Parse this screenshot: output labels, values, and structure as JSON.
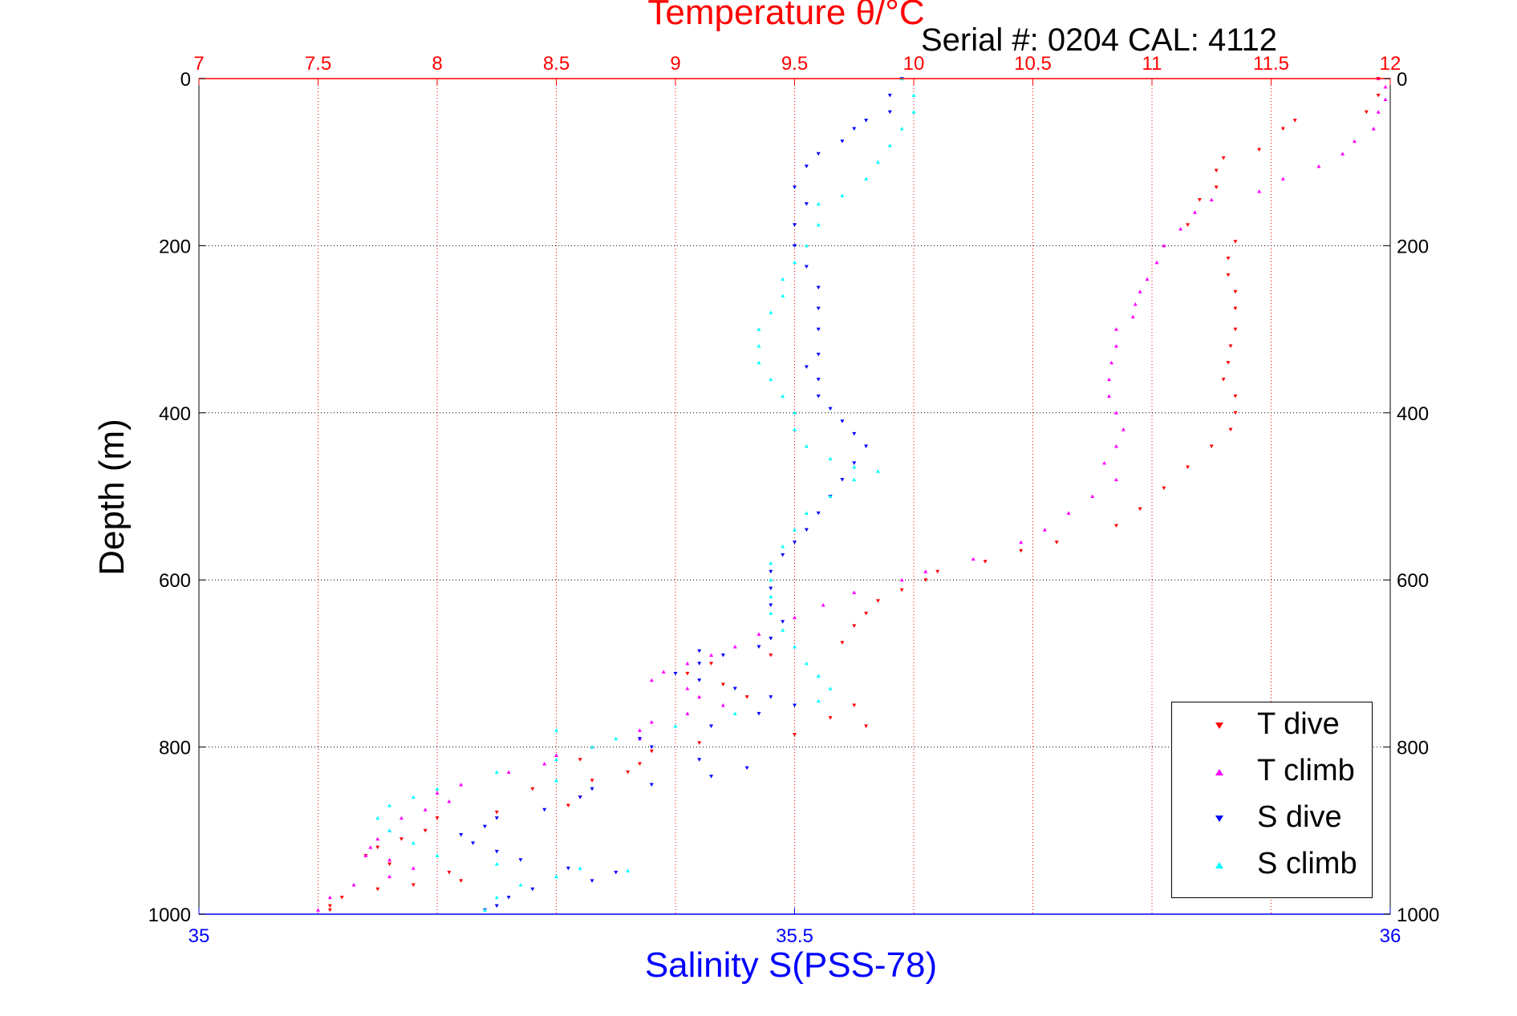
{
  "chart_data": {
    "type": "scatter",
    "title": "Temperature θ/°C",
    "subtitle": "Serial #: 0204  CAL: 4112",
    "ylabel": "Depth (m)",
    "xlabel": "Salinity S(PSS-78)",
    "grid": true,
    "legend_position": "bottom-right",
    "y_axis": {
      "min": 0,
      "max": 1000,
      "reversed": true,
      "ticks": [
        0,
        200,
        400,
        600,
        800,
        1000
      ]
    },
    "x_axis_top": {
      "label": "Temperature θ/°C",
      "min": 7,
      "max": 12,
      "ticks": [
        "7",
        "7.5",
        "8",
        "8.5",
        "9",
        "9.5",
        "10",
        "10.5",
        "11",
        "11.5",
        "12"
      ],
      "color": "#ff0000"
    },
    "x_axis_bottom": {
      "label": "Salinity S(PSS-78)",
      "min": 35,
      "max": 36,
      "ticks": [
        "35",
        "35.5",
        "36"
      ],
      "color": "#0000ff"
    },
    "series": [
      {
        "name": "T dive",
        "axis": "temperature",
        "color": "#ff0000",
        "marker": "down-triangle",
        "points": [
          [
            11.95,
            0
          ],
          [
            11.95,
            20
          ],
          [
            11.9,
            40
          ],
          [
            11.6,
            50
          ],
          [
            11.55,
            60
          ],
          [
            11.45,
            85
          ],
          [
            11.3,
            95
          ],
          [
            11.27,
            110
          ],
          [
            11.27,
            130
          ],
          [
            11.2,
            145
          ],
          [
            11.15,
            175
          ],
          [
            11.35,
            195
          ],
          [
            11.32,
            215
          ],
          [
            11.32,
            235
          ],
          [
            11.35,
            255
          ],
          [
            11.35,
            275
          ],
          [
            11.35,
            300
          ],
          [
            11.33,
            320
          ],
          [
            11.32,
            340
          ],
          [
            11.3,
            360
          ],
          [
            11.35,
            380
          ],
          [
            11.35,
            400
          ],
          [
            11.33,
            420
          ],
          [
            11.25,
            440
          ],
          [
            11.15,
            465
          ],
          [
            11.05,
            490
          ],
          [
            10.95,
            515
          ],
          [
            10.85,
            535
          ],
          [
            10.6,
            555
          ],
          [
            10.45,
            565
          ],
          [
            10.3,
            578
          ],
          [
            10.1,
            590
          ],
          [
            10.05,
            600
          ],
          [
            9.95,
            612
          ],
          [
            9.85,
            625
          ],
          [
            9.8,
            640
          ],
          [
            9.75,
            655
          ],
          [
            9.7,
            675
          ],
          [
            9.4,
            690
          ],
          [
            9.15,
            700
          ],
          [
            9.05,
            712
          ],
          [
            9.2,
            725
          ],
          [
            9.3,
            740
          ],
          [
            9.75,
            750
          ],
          [
            9.65,
            765
          ],
          [
            9.8,
            775
          ],
          [
            9.5,
            785
          ],
          [
            9.1,
            795
          ],
          [
            8.9,
            805
          ],
          [
            8.6,
            815
          ],
          [
            8.85,
            820
          ],
          [
            8.8,
            830
          ],
          [
            8.65,
            840
          ],
          [
            8.4,
            850
          ],
          [
            8.6,
            860
          ],
          [
            8.55,
            870
          ],
          [
            8.25,
            878
          ],
          [
            8.0,
            885
          ],
          [
            7.95,
            900
          ],
          [
            7.85,
            910
          ],
          [
            7.75,
            920
          ],
          [
            7.7,
            930
          ],
          [
            7.8,
            940
          ],
          [
            8.05,
            950
          ],
          [
            8.1,
            960
          ],
          [
            7.9,
            965
          ],
          [
            7.75,
            970
          ],
          [
            7.6,
            980
          ],
          [
            7.55,
            990
          ],
          [
            7.55,
            995
          ]
        ]
      },
      {
        "name": "T climb",
        "axis": "temperature",
        "color": "#ff00ff",
        "marker": "up-triangle",
        "points": [
          [
            11.95,
            0
          ],
          [
            11.98,
            10
          ],
          [
            11.98,
            25
          ],
          [
            11.95,
            40
          ],
          [
            11.93,
            60
          ],
          [
            11.85,
            75
          ],
          [
            11.8,
            90
          ],
          [
            11.7,
            105
          ],
          [
            11.55,
            120
          ],
          [
            11.45,
            135
          ],
          [
            11.25,
            145
          ],
          [
            11.18,
            160
          ],
          [
            11.12,
            180
          ],
          [
            11.05,
            200
          ],
          [
            11.02,
            220
          ],
          [
            10.98,
            240
          ],
          [
            10.95,
            255
          ],
          [
            10.93,
            270
          ],
          [
            10.92,
            285
          ],
          [
            10.85,
            300
          ],
          [
            10.85,
            320
          ],
          [
            10.83,
            340
          ],
          [
            10.82,
            360
          ],
          [
            10.82,
            380
          ],
          [
            10.85,
            400
          ],
          [
            10.88,
            420
          ],
          [
            10.85,
            440
          ],
          [
            10.8,
            460
          ],
          [
            10.85,
            480
          ],
          [
            10.75,
            500
          ],
          [
            10.65,
            520
          ],
          [
            10.55,
            540
          ],
          [
            10.45,
            555
          ],
          [
            10.25,
            575
          ],
          [
            10.05,
            590
          ],
          [
            9.95,
            600
          ],
          [
            9.75,
            615
          ],
          [
            9.62,
            630
          ],
          [
            9.5,
            645
          ],
          [
            9.35,
            665
          ],
          [
            9.25,
            680
          ],
          [
            9.15,
            690
          ],
          [
            9.05,
            700
          ],
          [
            8.95,
            710
          ],
          [
            8.9,
            720
          ],
          [
            9.05,
            730
          ],
          [
            9.1,
            740
          ],
          [
            9.2,
            750
          ],
          [
            9.05,
            760
          ],
          [
            8.9,
            770
          ],
          [
            8.85,
            780
          ],
          [
            8.85,
            790
          ],
          [
            8.65,
            800
          ],
          [
            8.5,
            810
          ],
          [
            8.45,
            820
          ],
          [
            8.3,
            830
          ],
          [
            8.1,
            845
          ],
          [
            8.0,
            855
          ],
          [
            8.05,
            865
          ],
          [
            7.95,
            875
          ],
          [
            7.85,
            885
          ],
          [
            7.8,
            900
          ],
          [
            7.75,
            910
          ],
          [
            7.72,
            920
          ],
          [
            7.7,
            930
          ],
          [
            7.8,
            935
          ],
          [
            7.9,
            945
          ],
          [
            7.8,
            955
          ],
          [
            7.65,
            965
          ],
          [
            7.55,
            980
          ],
          [
            7.5,
            995
          ]
        ]
      },
      {
        "name": "S dive",
        "axis": "salinity",
        "color": "#0000ff",
        "marker": "down-triangle",
        "points": [
          [
            35.59,
            0
          ],
          [
            35.58,
            20
          ],
          [
            35.58,
            40
          ],
          [
            35.56,
            50
          ],
          [
            35.55,
            60
          ],
          [
            35.54,
            75
          ],
          [
            35.52,
            90
          ],
          [
            35.51,
            105
          ],
          [
            35.5,
            130
          ],
          [
            35.51,
            150
          ],
          [
            35.5,
            175
          ],
          [
            35.5,
            200
          ],
          [
            35.51,
            225
          ],
          [
            35.52,
            250
          ],
          [
            35.52,
            275
          ],
          [
            35.52,
            300
          ],
          [
            35.52,
            330
          ],
          [
            35.51,
            345
          ],
          [
            35.52,
            360
          ],
          [
            35.52,
            380
          ],
          [
            35.53,
            395
          ],
          [
            35.54,
            410
          ],
          [
            35.55,
            425
          ],
          [
            35.56,
            440
          ],
          [
            35.55,
            460
          ],
          [
            35.54,
            480
          ],
          [
            35.53,
            500
          ],
          [
            35.52,
            520
          ],
          [
            35.51,
            540
          ],
          [
            35.5,
            555
          ],
          [
            35.49,
            570
          ],
          [
            35.48,
            590
          ],
          [
            35.48,
            610
          ],
          [
            35.48,
            630
          ],
          [
            35.49,
            650
          ],
          [
            35.48,
            670
          ],
          [
            35.47,
            680
          ],
          [
            35.42,
            685
          ],
          [
            35.44,
            690
          ],
          [
            35.42,
            700
          ],
          [
            35.4,
            712
          ],
          [
            35.42,
            720
          ],
          [
            35.45,
            730
          ],
          [
            35.48,
            740
          ],
          [
            35.5,
            750
          ],
          [
            35.47,
            760
          ],
          [
            35.43,
            775
          ],
          [
            35.37,
            790
          ],
          [
            35.38,
            800
          ],
          [
            35.42,
            815
          ],
          [
            35.46,
            825
          ],
          [
            35.43,
            835
          ],
          [
            35.38,
            845
          ],
          [
            35.33,
            850
          ],
          [
            35.32,
            860
          ],
          [
            35.29,
            875
          ],
          [
            35.25,
            885
          ],
          [
            35.24,
            895
          ],
          [
            35.22,
            905
          ],
          [
            35.23,
            915
          ],
          [
            35.25,
            925
          ],
          [
            35.27,
            935
          ],
          [
            35.31,
            945
          ],
          [
            35.35,
            950
          ],
          [
            35.33,
            960
          ],
          [
            35.28,
            970
          ],
          [
            35.26,
            980
          ],
          [
            35.25,
            990
          ],
          [
            35.24,
            995
          ]
        ]
      },
      {
        "name": "S climb",
        "axis": "salinity",
        "color": "#00ffff",
        "marker": "up-triangle",
        "points": [
          [
            35.59,
            0
          ],
          [
            35.6,
            20
          ],
          [
            35.6,
            40
          ],
          [
            35.59,
            60
          ],
          [
            35.58,
            80
          ],
          [
            35.57,
            100
          ],
          [
            35.56,
            120
          ],
          [
            35.54,
            140
          ],
          [
            35.52,
            150
          ],
          [
            35.52,
            175
          ],
          [
            35.51,
            200
          ],
          [
            35.5,
            220
          ],
          [
            35.49,
            240
          ],
          [
            35.49,
            260
          ],
          [
            35.48,
            280
          ],
          [
            35.47,
            300
          ],
          [
            35.47,
            320
          ],
          [
            35.47,
            340
          ],
          [
            35.48,
            360
          ],
          [
            35.49,
            380
          ],
          [
            35.5,
            400
          ],
          [
            35.5,
            420
          ],
          [
            35.51,
            440
          ],
          [
            35.53,
            455
          ],
          [
            35.55,
            465
          ],
          [
            35.57,
            470
          ],
          [
            35.55,
            480
          ],
          [
            35.53,
            500
          ],
          [
            35.51,
            520
          ],
          [
            35.5,
            540
          ],
          [
            35.49,
            560
          ],
          [
            35.48,
            580
          ],
          [
            35.48,
            600
          ],
          [
            35.48,
            620
          ],
          [
            35.48,
            640
          ],
          [
            35.49,
            660
          ],
          [
            35.5,
            680
          ],
          [
            35.51,
            700
          ],
          [
            35.52,
            715
          ],
          [
            35.53,
            730
          ],
          [
            35.52,
            745
          ],
          [
            35.45,
            760
          ],
          [
            35.4,
            775
          ],
          [
            35.3,
            780
          ],
          [
            35.35,
            790
          ],
          [
            35.33,
            800
          ],
          [
            35.3,
            815
          ],
          [
            35.25,
            830
          ],
          [
            35.3,
            840
          ],
          [
            35.2,
            850
          ],
          [
            35.18,
            860
          ],
          [
            35.16,
            870
          ],
          [
            35.15,
            885
          ],
          [
            35.16,
            900
          ],
          [
            35.18,
            915
          ],
          [
            35.2,
            930
          ],
          [
            35.25,
            940
          ],
          [
            35.32,
            945
          ],
          [
            35.36,
            948
          ],
          [
            35.3,
            955
          ],
          [
            35.27,
            965
          ],
          [
            35.25,
            980
          ],
          [
            35.24,
            995
          ]
        ]
      }
    ]
  }
}
